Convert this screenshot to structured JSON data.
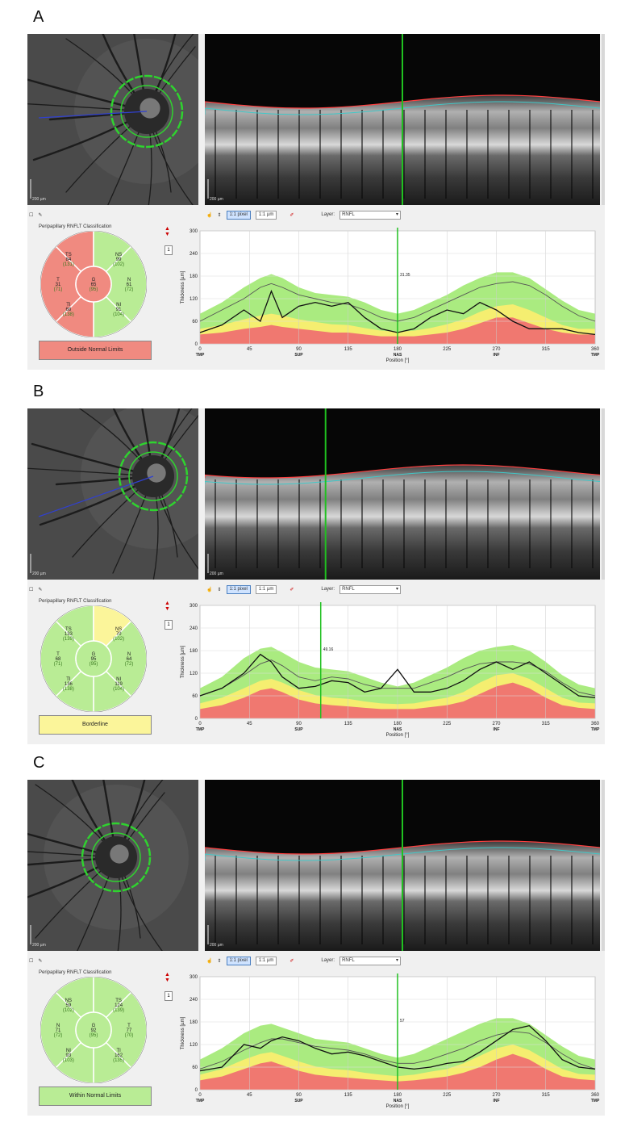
{
  "panels": [
    {
      "letter": "A",
      "fundus_scale": "200 µm",
      "oct_scale": "200 µm",
      "toolbar": {
        "btn1": "1:1 pixel",
        "btn2": "1:1 µm",
        "layer_label": "Layer:",
        "layer_value": "RNFL"
      },
      "classification_title": "Peripapillary RNFLT Classification",
      "sectors": {
        "TS": {
          "label": "TS",
          "value": "84",
          "normal": "(131)",
          "color": "#f08a80"
        },
        "NS": {
          "label": "NS",
          "value": "99",
          "normal": "(102)",
          "color": "#b9ec95"
        },
        "T": {
          "label": "T",
          "value": "31",
          "normal": "(71)",
          "color": "#f08a80"
        },
        "G": {
          "label": "G",
          "value": "65",
          "normal": "(95)",
          "color": "#f08a80"
        },
        "N": {
          "label": "N",
          "value": "61",
          "normal": "(72)",
          "color": "#b9ec95"
        },
        "TI": {
          "label": "TI",
          "value": "68",
          "normal": "(138)",
          "color": "#f08a80"
        },
        "NI": {
          "label": "NI",
          "value": "91",
          "normal": "(104)",
          "color": "#b9ec95"
        }
      },
      "status_text": "Outside Normal Limits",
      "status_color": "#f08a80",
      "marker_label": "31.35",
      "marker_deg": 180
    },
    {
      "letter": "B",
      "fundus_scale": "200 µm",
      "oct_scale": "200 µm",
      "toolbar": {
        "btn1": "1:1 pixel",
        "btn2": "1:1 µm",
        "layer_label": "Layer:",
        "layer_value": "RNFL"
      },
      "classification_title": "Peripapillary RNFLT Classification",
      "sectors": {
        "TS": {
          "label": "TS",
          "value": "133",
          "normal": "(139)",
          "color": "#b9ec95"
        },
        "NS": {
          "label": "NS",
          "value": "70",
          "normal": "(102)",
          "color": "#fbf59a"
        },
        "T": {
          "label": "T",
          "value": "68",
          "normal": "(71)",
          "color": "#b9ec95"
        },
        "G": {
          "label": "G",
          "value": "95",
          "normal": "(95)",
          "color": "#b9ec95"
        },
        "N": {
          "label": "N",
          "value": "64",
          "normal": "(72)",
          "color": "#b9ec95"
        },
        "TI": {
          "label": "TI",
          "value": "136",
          "normal": "(138)",
          "color": "#b9ec95"
        },
        "NI": {
          "label": "NI",
          "value": "119",
          "normal": "(104)",
          "color": "#b9ec95"
        }
      },
      "status_text": "Borderline",
      "status_color": "#fbf59a",
      "marker_label": "49.16",
      "marker_deg": 110
    },
    {
      "letter": "C",
      "fundus_scale": "200 µm",
      "oct_scale": "200 µm",
      "toolbar": {
        "btn1": "1:1 pixel",
        "btn2": "1:1 µm",
        "layer_label": "Layer:",
        "layer_value": "RNFL"
      },
      "classification_title": "Peripapillary RNFLT Classification",
      "sectors": {
        "NS": {
          "label": "NS",
          "value": "59",
          "normal": "(102)",
          "color": "#b9ec95"
        },
        "TS": {
          "label": "TS",
          "value": "124",
          "normal": "(139)",
          "color": "#b9ec95"
        },
        "N": {
          "label": "N",
          "value": "71",
          "normal": "(72)",
          "color": "#b9ec95"
        },
        "G": {
          "label": "G",
          "value": "92",
          "normal": "(95)",
          "color": "#b9ec95"
        },
        "T": {
          "label": "T",
          "value": "77",
          "normal": "(70)",
          "color": "#b9ec95"
        },
        "NI": {
          "label": "NI",
          "value": "93",
          "normal": "(103)",
          "color": "#b9ec95"
        },
        "TI": {
          "label": "TI",
          "value": "162",
          "normal": "(135)",
          "color": "#b9ec95"
        }
      },
      "status_text": "Within Normal Limits",
      "status_color": "#b9ec95",
      "marker_label": "57",
      "marker_deg": 180
    }
  ],
  "chart_data": [
    {
      "type": "line",
      "ylabel": "Thickness [µm]",
      "xlabel": "Position [°]",
      "ylim": [
        0,
        300
      ],
      "xlim": [
        0,
        360
      ],
      "y_ticks": [
        0,
        60,
        120,
        180,
        240,
        300
      ],
      "x_ticks": [
        0,
        45,
        90,
        135,
        180,
        225,
        270,
        315,
        360
      ],
      "x_tick_labels": [
        "0",
        "45",
        "90",
        "135",
        "180",
        "225",
        "270",
        "315",
        "360"
      ],
      "region_labels": [
        "TMP",
        "SUP",
        "NAS",
        "INF",
        "TMP"
      ],
      "x": [
        0,
        20,
        40,
        55,
        65,
        75,
        90,
        105,
        120,
        135,
        150,
        165,
        180,
        195,
        210,
        225,
        240,
        255,
        270,
        285,
        300,
        315,
        330,
        345,
        360
      ],
      "series": [
        {
          "values": [
            30,
            50,
            90,
            60,
            140,
            70,
            100,
            110,
            100,
            110,
            70,
            40,
            30,
            40,
            70,
            90,
            80,
            110,
            90,
            60,
            40,
            40,
            40,
            30,
            25
          ]
        },
        {
          "values": [
            60,
            90,
            120,
            150,
            160,
            150,
            130,
            120,
            110,
            105,
            90,
            70,
            60,
            70,
            90,
            110,
            130,
            150,
            160,
            165,
            155,
            130,
            100,
            75,
            60
          ]
        }
      ],
      "bands": {
        "red_top": [
          25,
          30,
          40,
          45,
          50,
          45,
          40,
          35,
          30,
          30,
          25,
          20,
          20,
          20,
          25,
          30,
          40,
          55,
          70,
          70,
          55,
          40,
          30,
          25,
          25
        ],
        "yellow_top": [
          40,
          50,
          65,
          75,
          80,
          75,
          65,
          58,
          52,
          50,
          42,
          35,
          32,
          35,
          42,
          52,
          65,
          85,
          100,
          105,
          90,
          70,
          50,
          40,
          40
        ],
        "green_top": [
          80,
          110,
          150,
          175,
          185,
          175,
          150,
          135,
          130,
          125,
          110,
          90,
          80,
          90,
          110,
          130,
          155,
          175,
          190,
          190,
          175,
          145,
          115,
          90,
          80
        ]
      }
    },
    {
      "type": "line",
      "ylabel": "Thickness [µm]",
      "xlabel": "Position [°]",
      "ylim": [
        0,
        300
      ],
      "xlim": [
        0,
        360
      ],
      "y_ticks": [
        0,
        60,
        120,
        180,
        240,
        300
      ],
      "x_ticks": [
        0,
        45,
        90,
        135,
        180,
        225,
        270,
        315,
        360
      ],
      "x_tick_labels": [
        "0",
        "45",
        "90",
        "135",
        "180",
        "225",
        "270",
        "315",
        "360"
      ],
      "region_labels": [
        "TMP",
        "SUP",
        "NAS",
        "INF",
        "TMP"
      ],
      "x": [
        0,
        20,
        40,
        55,
        65,
        75,
        90,
        105,
        120,
        135,
        150,
        165,
        180,
        195,
        210,
        225,
        240,
        255,
        270,
        285,
        300,
        315,
        330,
        345,
        360
      ],
      "series": [
        {
          "values": [
            60,
            80,
            120,
            170,
            150,
            110,
            80,
            85,
            100,
            95,
            70,
            80,
            130,
            70,
            70,
            80,
            100,
            130,
            150,
            130,
            150,
            120,
            90,
            60,
            55
          ]
        },
        {
          "values": [
            60,
            80,
            115,
            145,
            155,
            140,
            110,
            100,
            110,
            105,
            90,
            80,
            80,
            80,
            95,
            110,
            130,
            145,
            150,
            150,
            145,
            125,
            95,
            70,
            60
          ]
        }
      ],
      "bands": {
        "red_top": [
          25,
          35,
          55,
          75,
          80,
          70,
          50,
          40,
          35,
          32,
          28,
          25,
          25,
          25,
          30,
          35,
          45,
          65,
          85,
          95,
          80,
          55,
          35,
          28,
          25
        ],
        "yellow_top": [
          40,
          55,
          80,
          100,
          105,
          95,
          75,
          62,
          55,
          52,
          45,
          40,
          38,
          40,
          48,
          55,
          70,
          95,
          115,
          120,
          105,
          80,
          55,
          42,
          40
        ],
        "green_top": [
          80,
          110,
          160,
          185,
          190,
          175,
          150,
          135,
          130,
          125,
          110,
          95,
          85,
          95,
          115,
          135,
          160,
          180,
          190,
          195,
          180,
          150,
          115,
          90,
          80
        ]
      }
    },
    {
      "type": "line",
      "ylabel": "Thickness [µm]",
      "xlabel": "Position [°]",
      "ylim": [
        0,
        300
      ],
      "xlim": [
        0,
        360
      ],
      "y_ticks": [
        0,
        60,
        120,
        180,
        240,
        300
      ],
      "x_ticks": [
        0,
        45,
        90,
        135,
        180,
        225,
        270,
        315,
        360
      ],
      "x_tick_labels": [
        "0",
        "45",
        "90",
        "135",
        "180",
        "225",
        "270",
        "315",
        "360"
      ],
      "region_labels": [
        "TMP",
        "SUP",
        "NAS",
        "INF",
        "TMP"
      ],
      "x": [
        0,
        20,
        40,
        55,
        65,
        75,
        90,
        105,
        120,
        135,
        150,
        165,
        180,
        195,
        210,
        225,
        240,
        255,
        270,
        285,
        300,
        315,
        330,
        345,
        360
      ],
      "series": [
        {
          "values": [
            50,
            60,
            120,
            110,
            130,
            140,
            130,
            110,
            95,
            100,
            90,
            75,
            60,
            55,
            60,
            70,
            75,
            100,
            130,
            160,
            170,
            130,
            80,
            60,
            55
          ]
        },
        {
          "values": [
            55,
            75,
            105,
            125,
            135,
            135,
            125,
            115,
            110,
            105,
            95,
            80,
            70,
            70,
            80,
            95,
            110,
            130,
            145,
            155,
            150,
            125,
            95,
            70,
            55
          ]
        }
      ],
      "bands": {
        "red_top": [
          25,
          35,
          55,
          70,
          75,
          65,
          50,
          40,
          35,
          32,
          28,
          25,
          22,
          25,
          30,
          35,
          45,
          60,
          80,
          95,
          80,
          55,
          35,
          28,
          25
        ],
        "yellow_top": [
          40,
          55,
          80,
          95,
          100,
          90,
          75,
          62,
          55,
          52,
          45,
          40,
          36,
          40,
          48,
          55,
          70,
          90,
          110,
          120,
          105,
          80,
          55,
          42,
          40
        ],
        "green_top": [
          80,
          110,
          150,
          170,
          175,
          165,
          150,
          135,
          130,
          125,
          110,
          95,
          85,
          95,
          115,
          135,
          155,
          175,
          190,
          190,
          175,
          145,
          115,
          90,
          80
        ]
      }
    }
  ]
}
